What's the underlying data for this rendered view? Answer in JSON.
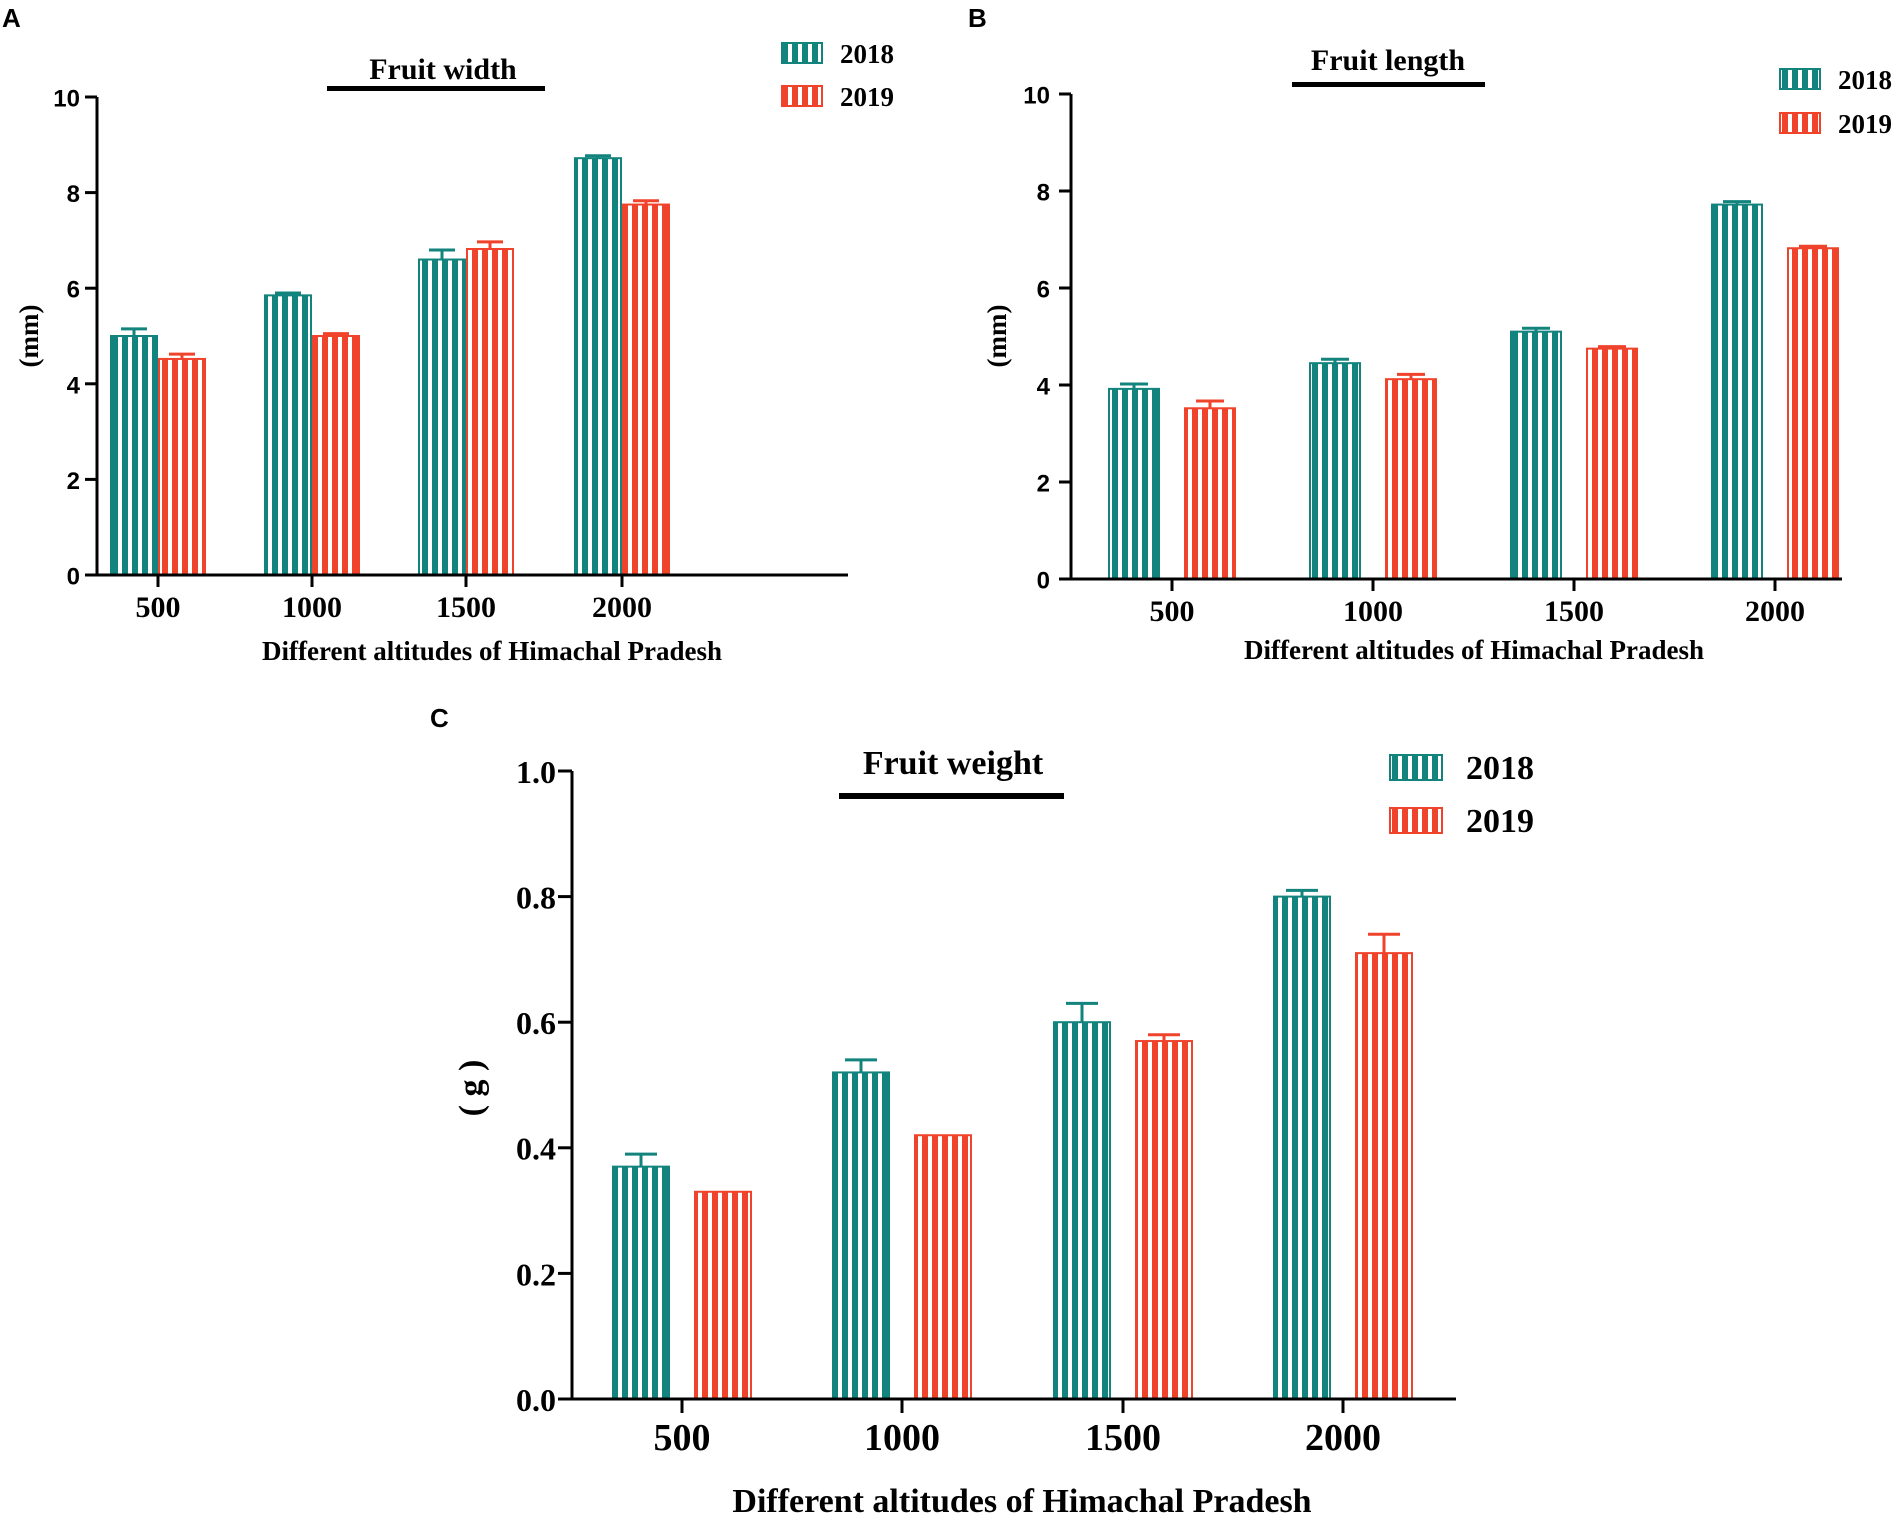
{
  "colors": {
    "series_2018": "#12837d",
    "series_2019": "#f0432c",
    "axis": "#000000"
  },
  "chart_data": [
    {
      "panel": "A",
      "type": "bar",
      "title": "Fruit width",
      "xlabel": "Different altitudes of Himachal Pradesh",
      "ylabel": "(mm)",
      "categories": [
        "500",
        "1000",
        "1500",
        "2000"
      ],
      "ylim": [
        0,
        10
      ],
      "yticks": [
        0,
        2,
        4,
        6,
        8,
        10
      ],
      "ytick_labels": [
        "0",
        "2",
        "4",
        "6",
        "8",
        "10"
      ],
      "legend_position": "top-right",
      "series": [
        {
          "name": "2018",
          "values": [
            5.0,
            5.85,
            6.6,
            8.72
          ],
          "errors": [
            0.15,
            0.05,
            0.2,
            0.05
          ]
        },
        {
          "name": "2019",
          "values": [
            4.52,
            5.0,
            6.82,
            7.75
          ],
          "errors": [
            0.1,
            0.05,
            0.15,
            0.08
          ]
        }
      ]
    },
    {
      "panel": "B",
      "type": "bar",
      "title": "Fruit length",
      "xlabel": "Different altitudes of Himachal Pradesh",
      "ylabel": "(mm)",
      "categories": [
        "500",
        "1000",
        "1500",
        "2000"
      ],
      "ylim": [
        0,
        10
      ],
      "yticks": [
        0,
        2,
        4,
        6,
        8,
        10
      ],
      "ytick_labels": [
        "0",
        "2",
        "4",
        "6",
        "8",
        "10"
      ],
      "legend_position": "top-right",
      "series": [
        {
          "name": "2018",
          "values": [
            3.92,
            4.45,
            5.1,
            7.72
          ],
          "errors": [
            0.1,
            0.08,
            0.07,
            0.06
          ]
        },
        {
          "name": "2019",
          "values": [
            3.52,
            4.12,
            4.75,
            6.82
          ],
          "errors": [
            0.15,
            0.1,
            0.04,
            0.04
          ]
        }
      ]
    },
    {
      "panel": "C",
      "type": "bar",
      "title": "Fruit weight",
      "xlabel": "Different altitudes of Himachal Pradesh",
      "ylabel": "( g )",
      "categories": [
        "500",
        "1000",
        "1500",
        "2000"
      ],
      "ylim": [
        0,
        1.0
      ],
      "yticks": [
        0,
        0.2,
        0.4,
        0.6,
        0.8,
        1.0
      ],
      "ytick_labels": [
        "0.0",
        "0.2",
        "0.4",
        "0.6",
        "0.8",
        "1.0"
      ],
      "legend_position": "top-right",
      "series": [
        {
          "name": "2018",
          "values": [
            0.37,
            0.52,
            0.6,
            0.8
          ],
          "errors": [
            0.02,
            0.02,
            0.03,
            0.01
          ]
        },
        {
          "name": "2019",
          "values": [
            0.33,
            0.42,
            0.57,
            0.71
          ],
          "errors": [
            0.0,
            0.0,
            0.01,
            0.03
          ]
        }
      ]
    }
  ]
}
